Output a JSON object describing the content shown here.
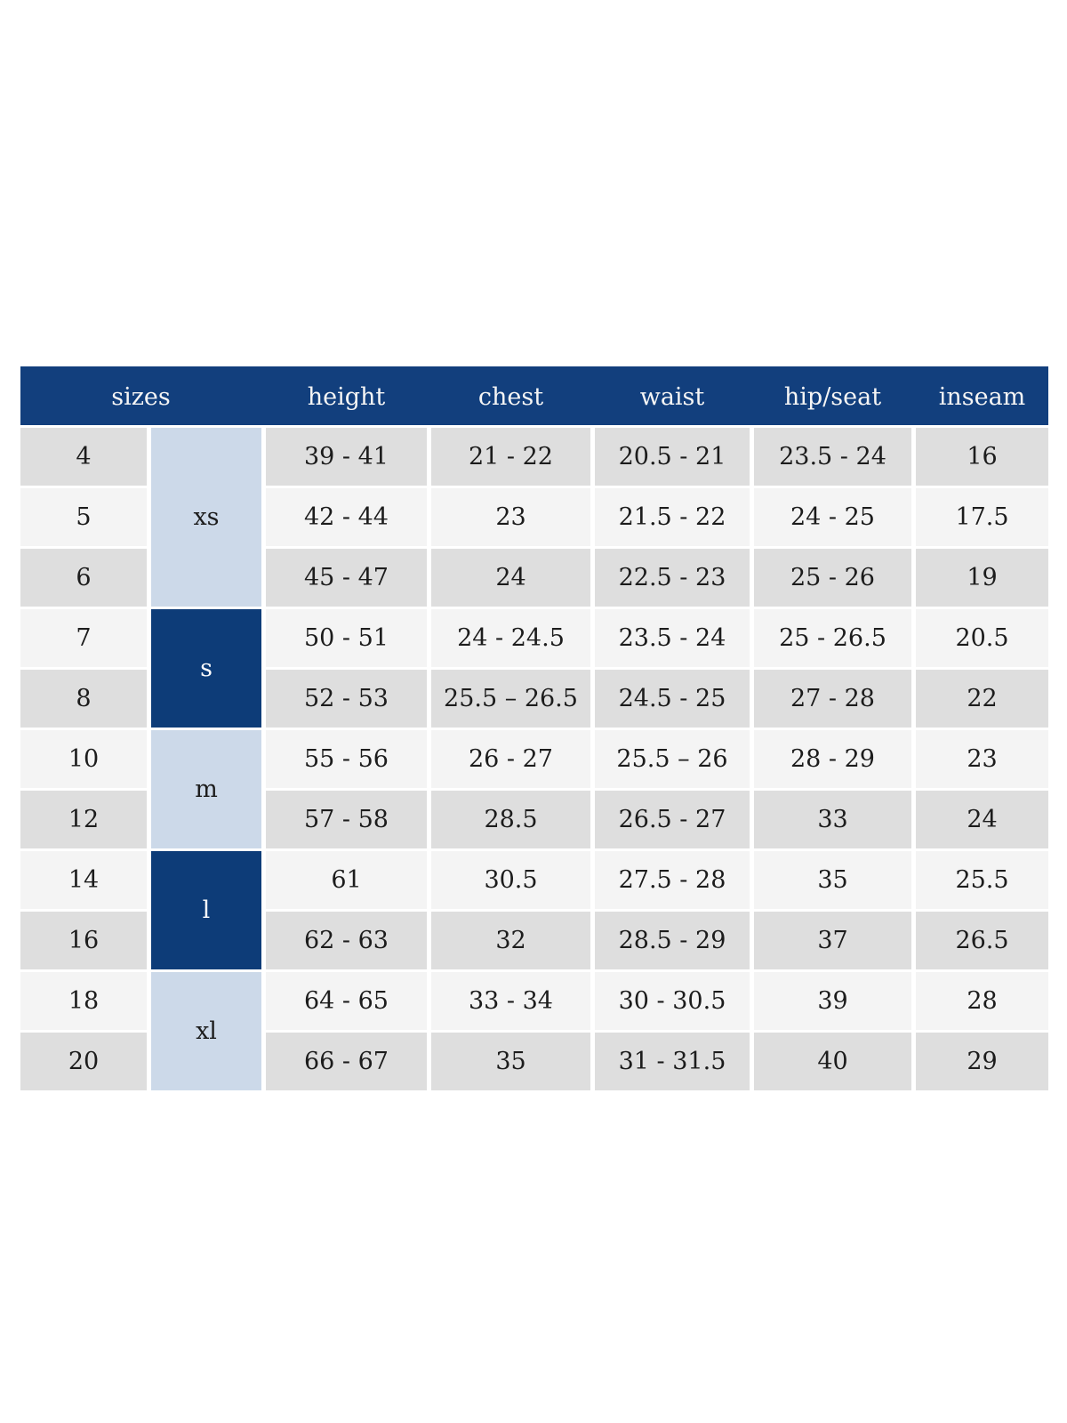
{
  "table": {
    "header": {
      "sizes": "sizes",
      "columns": [
        "height",
        "chest",
        "waist",
        "hip/seat",
        "inseam"
      ]
    },
    "size_groups": [
      {
        "label": "xs",
        "style": "light",
        "covers_sizes": [
          "4",
          "5",
          "6"
        ]
      },
      {
        "label": "s",
        "style": "dark",
        "covers_sizes": [
          "7",
          "8"
        ]
      },
      {
        "label": "m",
        "style": "light",
        "covers_sizes": [
          "10",
          "12"
        ]
      },
      {
        "label": "l",
        "style": "dark",
        "covers_sizes": [
          "14",
          "16"
        ]
      },
      {
        "label": "xl",
        "style": "light",
        "covers_sizes": [
          "18",
          "20"
        ]
      }
    ],
    "rows": [
      {
        "size": "4",
        "height": "39 - 41",
        "chest": "21 - 22",
        "waist": "20.5 - 21",
        "hip_seat": "23.5 - 24",
        "inseam": "16"
      },
      {
        "size": "5",
        "height": "42 - 44",
        "chest": "23",
        "waist": "21.5 - 22",
        "hip_seat": "24 - 25",
        "inseam": "17.5"
      },
      {
        "size": "6",
        "height": "45 - 47",
        "chest": "24",
        "waist": "22.5 - 23",
        "hip_seat": "25 - 26",
        "inseam": "19"
      },
      {
        "size": "7",
        "height": "50 - 51",
        "chest": "24 - 24.5",
        "waist": "23.5 - 24",
        "hip_seat": "25 - 26.5",
        "inseam": "20.5"
      },
      {
        "size": "8",
        "height": "52 - 53",
        "chest": "25.5 – 26.5",
        "waist": "24.5 - 25",
        "hip_seat": "27 - 28",
        "inseam": "22"
      },
      {
        "size": "10",
        "height": "55 - 56",
        "chest": "26 - 27",
        "waist": "25.5 – 26",
        "hip_seat": "28 - 29",
        "inseam": "23"
      },
      {
        "size": "12",
        "height": "57 - 58",
        "chest": "28.5",
        "waist": "26.5 - 27",
        "hip_seat": "33",
        "inseam": "24"
      },
      {
        "size": "14",
        "height": "61",
        "chest": "30.5",
        "waist": "27.5 - 28",
        "hip_seat": "35",
        "inseam": "25.5"
      },
      {
        "size": "16",
        "height": "62 - 63",
        "chest": "32",
        "waist": "28.5 - 29",
        "hip_seat": "37",
        "inseam": "26.5"
      },
      {
        "size": "18",
        "height": "64 - 65",
        "chest": "33 - 34",
        "waist": "30 - 30.5",
        "hip_seat": "39",
        "inseam": "28"
      },
      {
        "size": "20",
        "height": "66 - 67",
        "chest": "35",
        "waist": "31 - 31.5",
        "hip_seat": "40",
        "inseam": "29"
      }
    ],
    "colors": {
      "header_bg": "#123f7d",
      "header_text": "#f5f5f5",
      "group_dark_bg": "#0d3c78",
      "group_dark_text": "#ffffff",
      "group_light_bg": "#ccd9e9",
      "row_odd_bg": "#dedede",
      "row_even_bg": "#f4f4f4",
      "cell_text": "#1c1c1c"
    }
  }
}
